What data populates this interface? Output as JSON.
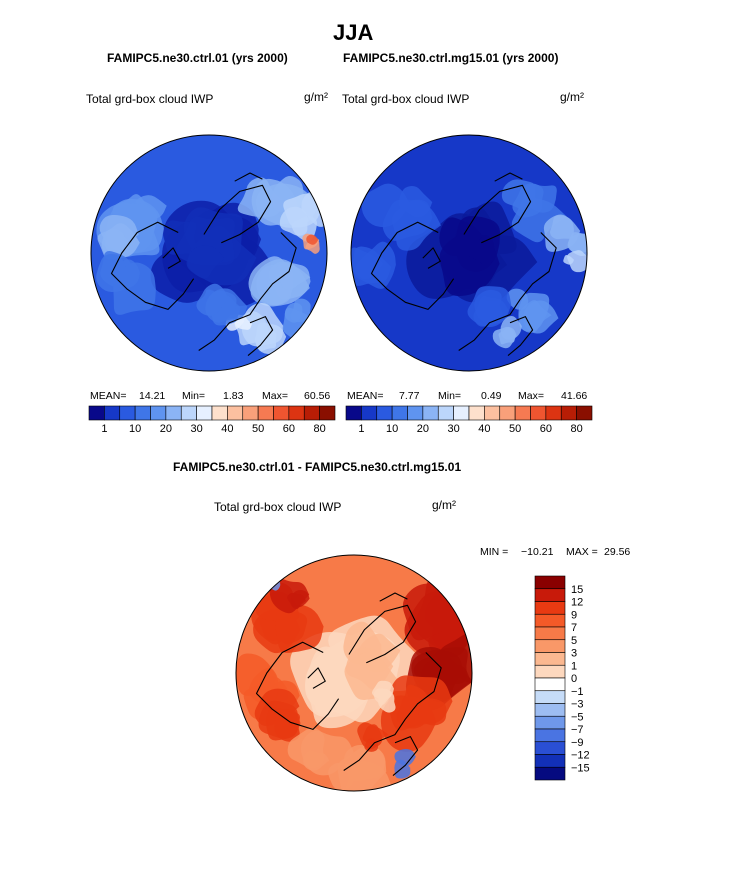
{
  "page": {
    "title": "JJA",
    "panel_left_title": "FAMIPC5.ne30.ctrl.01 (yrs 2000)",
    "panel_right_title": "FAMIPC5.ne30.ctrl.mg15.01 (yrs 2000)",
    "diff_title": "FAMIPC5.ne30.ctrl.01 - FAMIPC5.ne30.ctrl.mg15.01"
  },
  "chart_data": [
    {
      "type": "heatmap",
      "projection": "north-polar-stereographic",
      "title": "FAMIPC5.ne30.ctrl.01 (yrs 2000)",
      "variable": "Total grd-box cloud IWP",
      "units": "g/m²",
      "stats": {
        "mean_label": "MEAN=",
        "mean": "14.21",
        "min_label": "Min=",
        "min": "1.83",
        "max_label": "Max=",
        "max": "60.56"
      },
      "colorbar_ticks": [
        "1",
        "10",
        "20",
        "30",
        "40",
        "50",
        "60",
        "80"
      ],
      "colorbar_colors": [
        "#08088a",
        "#1638c8",
        "#2a5ae0",
        "#3f76e8",
        "#5f94f0",
        "#8bb4f5",
        "#bcd6fb",
        "#e6f0ff",
        "#fde0cc",
        "#fcc0a0",
        "#f9a07a",
        "#f67a52",
        "#ef5530",
        "#dc3412",
        "#b81d05",
        "#8a0f00"
      ]
    },
    {
      "type": "heatmap",
      "projection": "north-polar-stereographic",
      "title": "FAMIPC5.ne30.ctrl.mg15.01 (yrs 2000)",
      "variable": "Total grd-box cloud IWP",
      "units": "g/m²",
      "stats": {
        "mean_label": "MEAN=",
        "mean": "7.77",
        "min_label": "Min=",
        "min": "0.49",
        "max_label": "Max=",
        "max": "41.66"
      },
      "colorbar_ticks": [
        "1",
        "10",
        "20",
        "30",
        "40",
        "50",
        "60",
        "80"
      ],
      "colorbar_colors": [
        "#08088a",
        "#1638c8",
        "#2a5ae0",
        "#3f76e8",
        "#5f94f0",
        "#8bb4f5",
        "#bcd6fb",
        "#e6f0ff",
        "#fde0cc",
        "#fcc0a0",
        "#f9a07a",
        "#f67a52",
        "#ef5530",
        "#dc3412",
        "#b81d05",
        "#8a0f00"
      ]
    },
    {
      "type": "heatmap",
      "projection": "north-polar-stereographic",
      "title": "FAMIPC5.ne30.ctrl.01 - FAMIPC5.ne30.ctrl.mg15.01",
      "variable": "Total grd-box cloud IWP",
      "units": "g/m²",
      "stats": {
        "min_label": "MIN =",
        "min": "−10.21",
        "max_label": "MAX =",
        "max": "29.56"
      },
      "colorbar_ticks": [
        "15",
        "12",
        "9",
        "7",
        "5",
        "3",
        "1",
        "0",
        "−1",
        "−3",
        "−5",
        "−7",
        "−9",
        "−12",
        "−15"
      ],
      "colorbar_colors": [
        "#8a0000",
        "#c81a0a",
        "#e83a12",
        "#f45a28",
        "#f77a48",
        "#f99868",
        "#fbb890",
        "#fdd8be",
        "#ffffff",
        "#c6dcf8",
        "#9dbdf2",
        "#6f98ea",
        "#4a74e2",
        "#2a4fd4",
        "#1230b8",
        "#050a80"
      ]
    }
  ]
}
